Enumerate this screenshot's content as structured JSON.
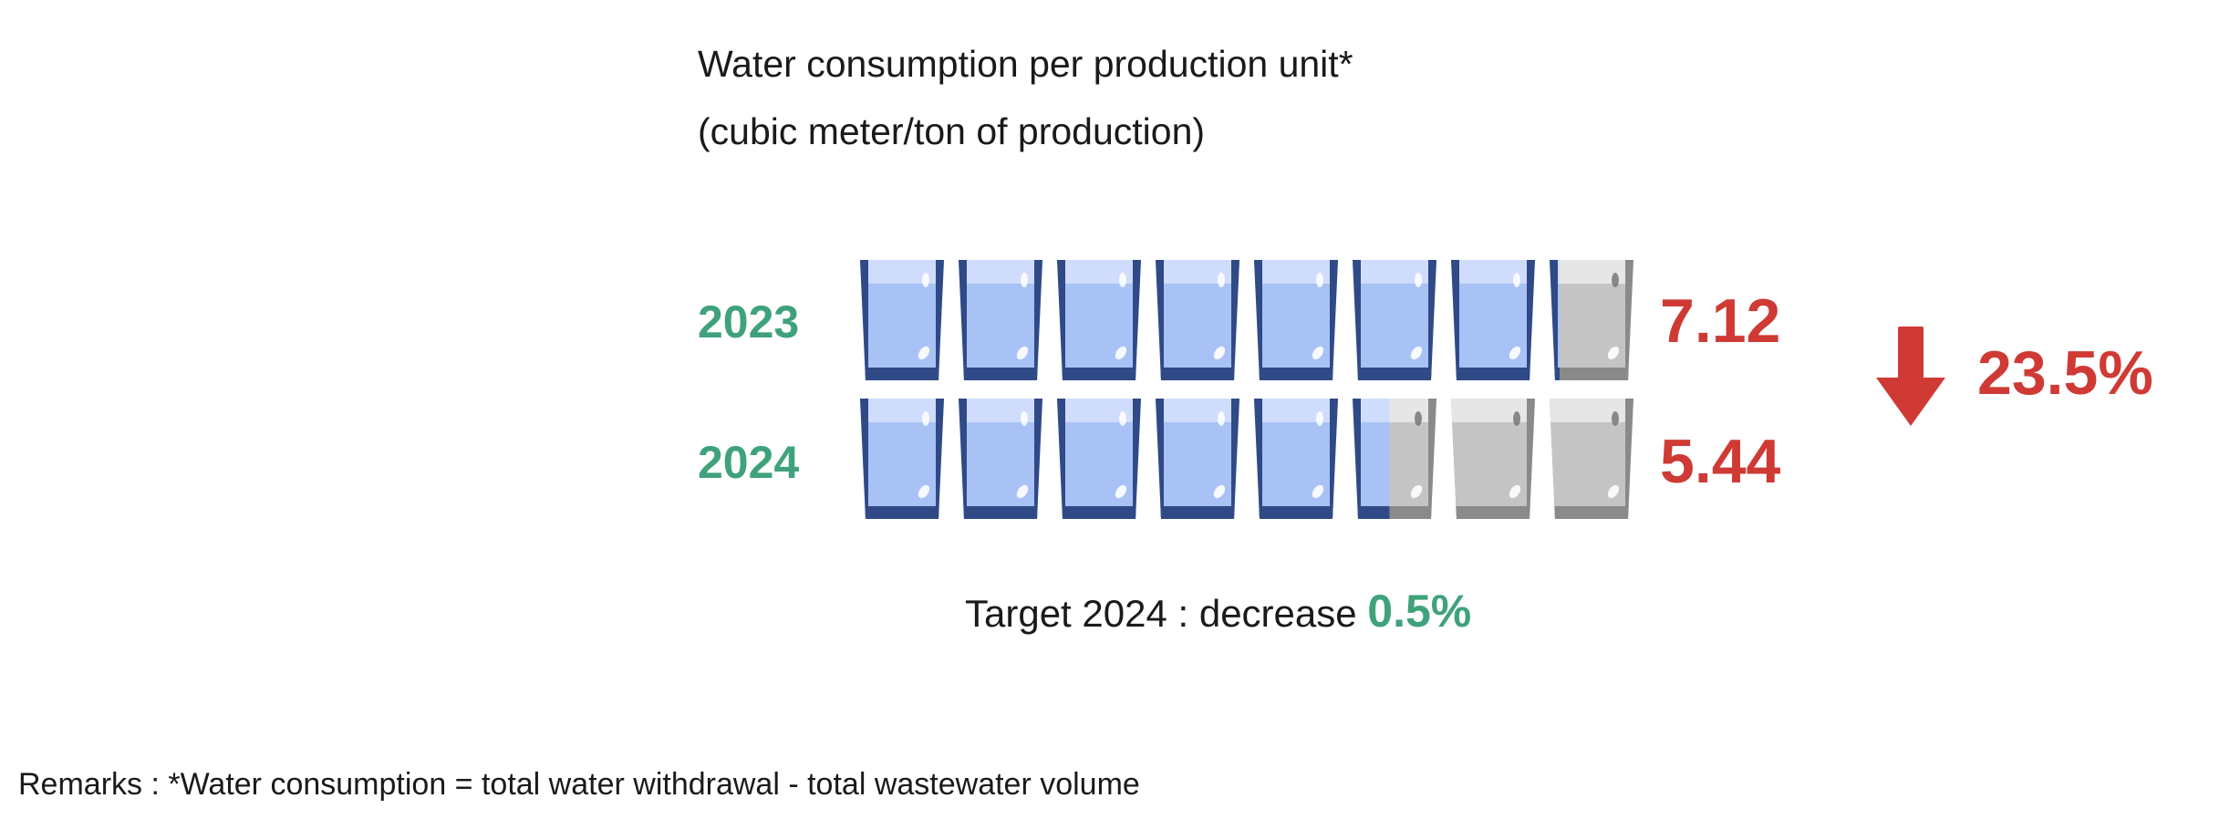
{
  "colors": {
    "accent_green": "#3fa27a",
    "accent_red": "#cf3a35",
    "water_fill": "#a9c2f5",
    "water_light": "#cfdcfb",
    "glass_dark": "#2f4a86",
    "empty_fill": "#c4c4c4",
    "empty_light": "#e6e6e6",
    "empty_dark": "#8a8a8a"
  },
  "chart_data": {
    "type": "pictogram",
    "title": "Water consumption per production unit*",
    "subtitle": "(cubic meter/ton of production)",
    "icon": "water-glass-icon",
    "glasses_total": 8,
    "categories": [
      "2023",
      "2024"
    ],
    "values": [
      7.12,
      5.44
    ],
    "value_labels": [
      "7.12",
      "5.44"
    ],
    "change": {
      "direction": "down",
      "label": "23.5%",
      "icon": "arrow-down-icon"
    },
    "target": {
      "text": "Target 2024 : decrease",
      "value": "0.5%"
    },
    "note": "Remarks : *Water consumption = total water withdrawal - total wastewater volume"
  }
}
